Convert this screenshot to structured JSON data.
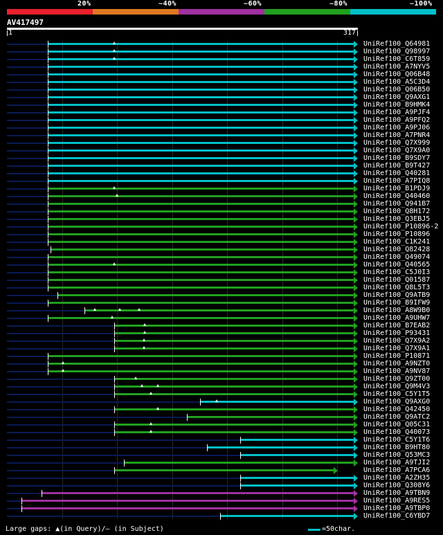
{
  "legend": {
    "segments": [
      {
        "color": "#e8202c",
        "label": "20%"
      },
      {
        "color": "#e07820",
        "label": "~40%"
      },
      {
        "color": "#a030a0",
        "label": "~60%"
      },
      {
        "color": "#20a020",
        "label": "~80%"
      },
      {
        "color": "#00c0c8",
        "label": "~100%"
      }
    ]
  },
  "query": {
    "id": "AV417497",
    "start": "1",
    "end": "317"
  },
  "colors": {
    "cyan": "#00c0c8",
    "green": "#20a020",
    "purple": "#a030a0",
    "navy": "#0a1a55"
  },
  "hits": [
    {
      "name": "UniRef100_Q64981",
      "color": "cyan",
      "start": 69,
      "gaps": [
        165
      ]
    },
    {
      "name": "UniRef100_Q98997",
      "color": "cyan",
      "start": 69,
      "gaps": [
        165
      ]
    },
    {
      "name": "UniRef100_C6T859",
      "color": "cyan",
      "start": 69,
      "gaps": [
        165
      ]
    },
    {
      "name": "UniRef100_A7NYV5",
      "color": "cyan",
      "start": 69,
      "gaps": []
    },
    {
      "name": "UniRef100_Q06B48",
      "color": "cyan",
      "start": 69,
      "gaps": []
    },
    {
      "name": "UniRef100_A5C3D4",
      "color": "cyan",
      "start": 69,
      "gaps": []
    },
    {
      "name": "UniRef100_Q06B50",
      "color": "cyan",
      "start": 69,
      "gaps": []
    },
    {
      "name": "UniRef100_Q9AXG1",
      "color": "cyan",
      "start": 69,
      "gaps": []
    },
    {
      "name": "UniRef100_B9HMK4",
      "color": "cyan",
      "start": 69,
      "gaps": []
    },
    {
      "name": "UniRef100_A9PJF4",
      "color": "cyan",
      "start": 69,
      "gaps": []
    },
    {
      "name": "UniRef100_A9PFQ2",
      "color": "cyan",
      "start": 69,
      "gaps": []
    },
    {
      "name": "UniRef100_A9PJ06",
      "color": "cyan",
      "start": 69,
      "gaps": []
    },
    {
      "name": "UniRef100_A7PNR4",
      "color": "cyan",
      "start": 69,
      "gaps": []
    },
    {
      "name": "UniRef100_Q7X999",
      "color": "cyan",
      "start": 69,
      "gaps": []
    },
    {
      "name": "UniRef100_Q7X9A0",
      "color": "cyan",
      "start": 69,
      "gaps": []
    },
    {
      "name": "UniRef100_B9SDY7",
      "color": "cyan",
      "start": 69,
      "gaps": []
    },
    {
      "name": "UniRef100_B9T427",
      "color": "cyan",
      "start": 69,
      "gaps": []
    },
    {
      "name": "UniRef100_Q40281",
      "color": "cyan",
      "start": 69,
      "gaps": []
    },
    {
      "name": "UniRef100_A7PIQ8",
      "color": "cyan",
      "start": 69,
      "gaps": []
    },
    {
      "name": "UniRef100_B1PDJ9",
      "color": "green",
      "start": 69,
      "gaps": [
        165
      ]
    },
    {
      "name": "UniRef100_Q40460",
      "color": "green",
      "start": 69,
      "gaps": [
        169
      ]
    },
    {
      "name": "UniRef100_Q941B7",
      "color": "green",
      "start": 69,
      "gaps": []
    },
    {
      "name": "UniRef100_Q8H172",
      "color": "green",
      "start": 69,
      "gaps": []
    },
    {
      "name": "UniRef100_Q3EBJ5",
      "color": "green",
      "start": 69,
      "gaps": []
    },
    {
      "name": "UniRef100_P10896-2",
      "color": "green",
      "start": 69,
      "gaps": []
    },
    {
      "name": "UniRef100_P10896",
      "color": "green",
      "start": 69,
      "gaps": []
    },
    {
      "name": "UniRef100_C1K241",
      "color": "green",
      "start": 69,
      "gaps": []
    },
    {
      "name": "UniRef100_Q82428",
      "color": "green",
      "start": 73,
      "gaps": []
    },
    {
      "name": "UniRef100_Q49074",
      "color": "green",
      "start": 69,
      "gaps": []
    },
    {
      "name": "UniRef100_Q40565",
      "color": "green",
      "start": 69,
      "gaps": [
        165
      ]
    },
    {
      "name": "UniRef100_C5J0I3",
      "color": "green",
      "start": 69,
      "gaps": []
    },
    {
      "name": "UniRef100_Q01587",
      "color": "green",
      "start": 69,
      "gaps": []
    },
    {
      "name": "UniRef100_Q8L5T3",
      "color": "green",
      "start": 69,
      "gaps": []
    },
    {
      "name": "UniRef100_Q9ATB9",
      "color": "green",
      "start": 83,
      "gaps": []
    },
    {
      "name": "UniRef100_B9IFW9",
      "color": "green",
      "start": 69,
      "gaps": []
    },
    {
      "name": "UniRef100_A8W9B0",
      "color": "green",
      "start": 122,
      "gaps": [
        137,
        173,
        201
      ]
    },
    {
      "name": "UniRef100_A9UHW7",
      "color": "green",
      "start": 69,
      "gaps": [
        162
      ]
    },
    {
      "name": "UniRef100_B7EAB2",
      "color": "green",
      "start": 165,
      "gaps": [
        209
      ]
    },
    {
      "name": "UniRef100_P93431",
      "color": "green",
      "start": 165,
      "gaps": [
        209
      ]
    },
    {
      "name": "UniRef100_Q7X9A2",
      "color": "green",
      "start": 165,
      "gaps": [
        208
      ]
    },
    {
      "name": "UniRef100_Q7X9A1",
      "color": "green",
      "start": 165,
      "gaps": [
        208
      ]
    },
    {
      "name": "UniRef100_P10871",
      "color": "green",
      "start": 69,
      "gaps": []
    },
    {
      "name": "UniRef100_A9NZT0",
      "color": "green",
      "start": 69,
      "gaps": [
        91
      ]
    },
    {
      "name": "UniRef100_A9NV87",
      "color": "green",
      "start": 69,
      "gaps": [
        91
      ]
    },
    {
      "name": "UniRef100_Q9ZT00",
      "color": "green",
      "start": 165,
      "gaps": [
        196
      ]
    },
    {
      "name": "UniRef100_Q9M4V3",
      "color": "green",
      "start": 165,
      "gaps": [
        205,
        228
      ]
    },
    {
      "name": "UniRef100_C5Y1T5",
      "color": "green",
      "start": 165,
      "gaps": [
        218
      ]
    },
    {
      "name": "UniRef100_Q9AXG0",
      "color": "cyan",
      "start": 289,
      "gaps": [
        313
      ]
    },
    {
      "name": "UniRef100_Q42450",
      "color": "green",
      "start": 165,
      "gaps": [
        228
      ]
    },
    {
      "name": "UniRef100_Q9ATC2",
      "color": "green",
      "start": 270,
      "gaps": []
    },
    {
      "name": "UniRef100_Q05C31",
      "color": "green",
      "start": 165,
      "gaps": [
        218
      ]
    },
    {
      "name": "UniRef100_Q40073",
      "color": "green",
      "start": 165,
      "gaps": [
        218
      ]
    },
    {
      "name": "UniRef100_C5Y1T6",
      "color": "cyan",
      "start": 347,
      "gaps": []
    },
    {
      "name": "UniRef100_B9HT80",
      "color": "cyan",
      "start": 299,
      "gaps": []
    },
    {
      "name": "UniRef100_Q53MC3",
      "color": "cyan",
      "start": 347,
      "gaps": []
    },
    {
      "name": "UniRef100_A9TJI2",
      "color": "green",
      "start": 179,
      "gaps": []
    },
    {
      "name": "UniRef100_A7PCA6",
      "color": "green",
      "start": 165,
      "gaps": [],
      "end": 482
    },
    {
      "name": "UniRef100_A2ZH35",
      "color": "cyan",
      "start": 347,
      "gaps": []
    },
    {
      "name": "UniRef100_Q308Y6",
      "color": "cyan",
      "start": 347,
      "gaps": []
    },
    {
      "name": "UniRef100_A9TBN9",
      "color": "purple",
      "start": 60,
      "gaps": []
    },
    {
      "name": "UniRef100_A9RES5",
      "color": "purple",
      "start": 31,
      "gaps": []
    },
    {
      "name": "UniRef100_A9TBP0",
      "color": "purple",
      "start": 31,
      "gaps": []
    },
    {
      "name": "UniRef100_C6YBD7",
      "color": "cyan",
      "start": 318,
      "gaps": []
    }
  ],
  "footer": {
    "gap_note": "Large gaps: ▲(in Query)/– (in Subject)",
    "scale_label": "=50char."
  }
}
